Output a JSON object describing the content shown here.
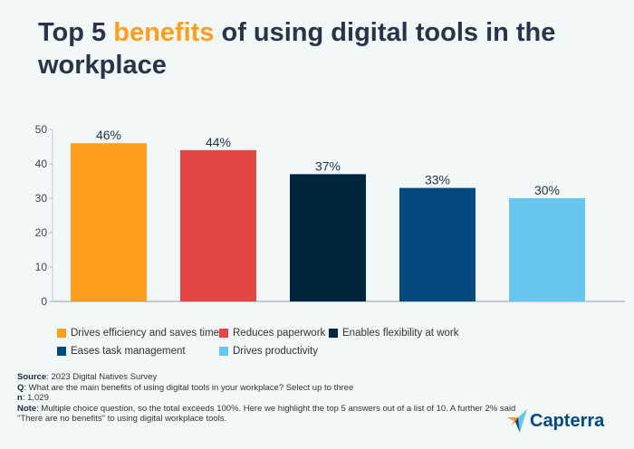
{
  "title": {
    "before": "Top 5 ",
    "highlight": "benefits",
    "after": " of using digital tools in the workplace"
  },
  "chart_data": {
    "type": "bar",
    "title": "Top 5 benefits of using digital tools in the workplace",
    "categories": [
      "Drives efficiency and saves time",
      "Reduces paperwork",
      "Enables flexibility at work",
      "Eases task management",
      "Drives productivity"
    ],
    "values": [
      46,
      44,
      37,
      33,
      30
    ],
    "data_labels": [
      "46%",
      "44%",
      "37%",
      "33%",
      "30%"
    ],
    "colors": [
      "#ff9d1e",
      "#e44646",
      "#00263e",
      "#044a7f",
      "#67c6ee"
    ],
    "ylim": [
      0,
      50
    ],
    "yticks": [
      0,
      10,
      20,
      30,
      40,
      50
    ],
    "grid": false,
    "legend_position": "bottom",
    "xlabel": "",
    "ylabel": ""
  },
  "notes": {
    "source_label": "Source",
    "source": ": 2023 Digital Natives Survey",
    "q_label": "Q",
    "q": ": What are the main benefits of using digital tools in your workplace? Select up to three",
    "n_label": "n",
    "n": ": 1,029",
    "note_label": "Note",
    "note": ": Multiple choice question, so the total exceeds 100%. Here we highlight the top 5 answers out of a list of 10. A further 2% said \"There are no benefits\" to using digital workplace tools."
  },
  "logo": {
    "text": "Capterra"
  }
}
